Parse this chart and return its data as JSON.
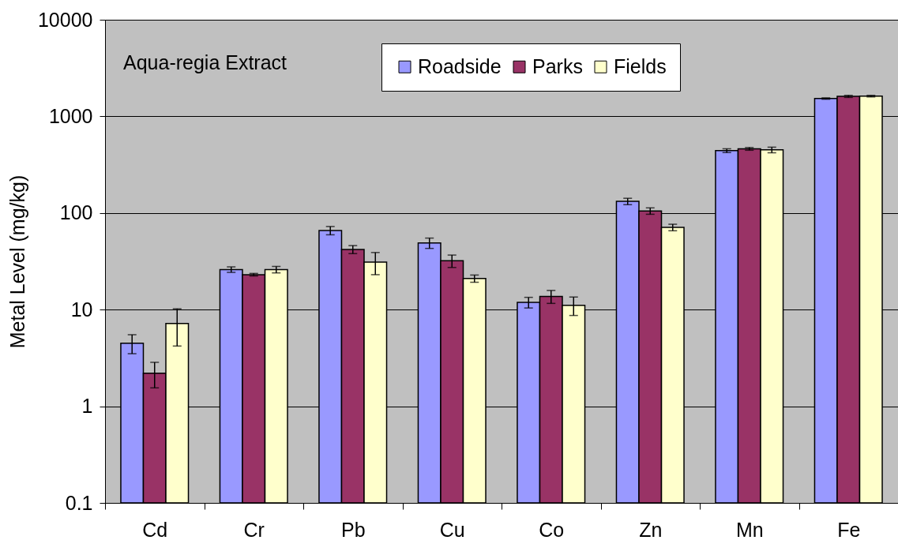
{
  "chart_data": {
    "type": "bar",
    "ylabel": "Metal Level (mg/kg)",
    "annotations": [
      "Aqua-regia Extract"
    ],
    "categories": [
      "Cd",
      "Cr",
      "Pb",
      "Cu",
      "Co",
      "Zn",
      "Mn",
      "Fe"
    ],
    "series": [
      {
        "name": "Roadside",
        "color": "#9999ff",
        "values": [
          4.5,
          26,
          66,
          49,
          11.9,
          132,
          442,
          1530
        ],
        "errors": [
          1.0,
          1.7,
          6.5,
          6,
          1.5,
          10,
          20,
          25
        ]
      },
      {
        "name": "Parks",
        "color": "#993366",
        "values": [
          2.2,
          23,
          42,
          32,
          13.7,
          105,
          461,
          1610
        ],
        "errors": [
          0.65,
          0.7,
          4,
          4.7,
          2.1,
          8,
          15,
          40
        ]
      },
      {
        "name": "Fields",
        "color": "#ffffcc",
        "values": [
          7.2,
          26,
          31,
          21,
          11.1,
          71,
          450,
          1620
        ],
        "errors": [
          3,
          2,
          8,
          1.8,
          2.4,
          5.5,
          30,
          30
        ]
      }
    ],
    "ylim": [
      0.1,
      10000
    ],
    "yticks": [
      0.1,
      1,
      10,
      100,
      1000,
      10000
    ],
    "log": true,
    "grid": "y",
    "legend": "top"
  }
}
